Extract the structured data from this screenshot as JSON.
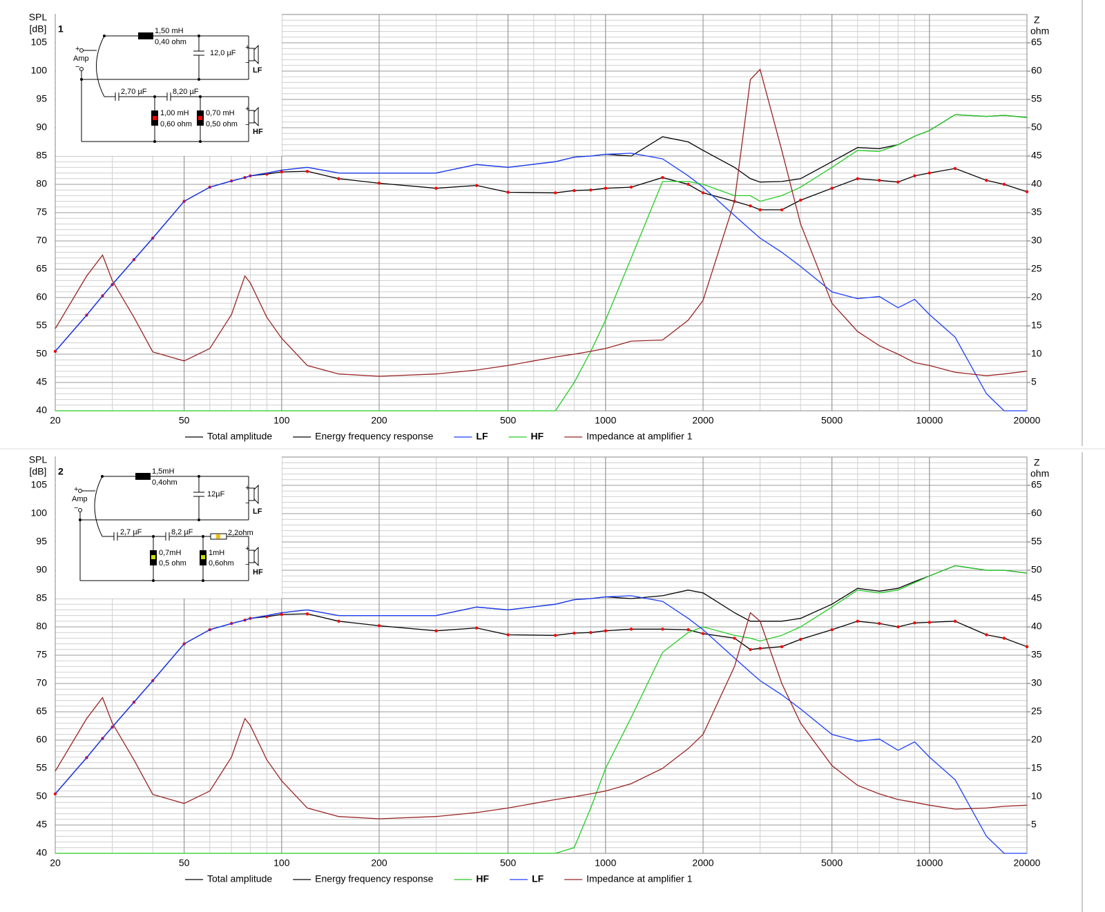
{
  "chart_data": [
    {
      "type": "line",
      "panel_label": "1",
      "y_label": [
        "SPL",
        "[dB]"
      ],
      "y2_label": [
        "Z",
        "ohm"
      ],
      "log_x": true,
      "grid": true,
      "x": [
        20,
        25,
        28,
        30,
        35,
        40,
        50,
        60,
        70,
        77,
        80,
        90,
        100,
        120,
        150,
        200,
        300,
        400,
        500,
        700,
        800,
        900,
        1000,
        1200,
        1500,
        1800,
        2000,
        2500,
        2800,
        3000,
        3500,
        4000,
        5000,
        6000,
        7000,
        8000,
        9000,
        10000,
        12000,
        15000,
        17000,
        20000
      ],
      "xlim": [
        20,
        20000
      ],
      "xticks": [
        20,
        50,
        100,
        200,
        500,
        1000,
        2000,
        5000,
        10000,
        20000
      ],
      "ylim": [
        40,
        110
      ],
      "yticks": [
        40,
        45,
        50,
        55,
        60,
        65,
        70,
        75,
        80,
        85,
        90,
        95,
        100,
        105
      ],
      "y2lim": [
        0,
        70
      ],
      "y2ticks": [
        5,
        10,
        15,
        20,
        25,
        30,
        35,
        40,
        45,
        50,
        55,
        60,
        65
      ],
      "series": [
        {
          "name": "Total amplitude",
          "color": "#000000",
          "values": [
            50.5,
            56.9,
            60.3,
            62.3,
            66.7,
            70.5,
            77,
            79.5,
            80.6,
            81.2,
            81.5,
            82,
            82.5,
            83,
            82,
            82,
            82,
            83.5,
            83,
            84,
            84.8,
            85,
            85.3,
            85,
            88.4,
            87.5,
            86,
            83,
            81,
            80.4,
            80.5,
            81,
            84,
            86.5,
            86.3,
            87,
            88.5,
            89.5,
            92.3,
            92,
            92.2,
            91.8
          ]
        },
        {
          "name": "Energy frequency response",
          "color": "#000000",
          "marker_color": "#ff0000",
          "values": [
            50.5,
            56.9,
            60.3,
            62.3,
            66.7,
            70.5,
            77,
            79.5,
            80.6,
            81.2,
            81.5,
            81.8,
            82.2,
            82.3,
            81,
            80.2,
            79.3,
            79.8,
            78.6,
            78.5,
            78.9,
            79,
            79.3,
            79.5,
            81.2,
            80,
            78.5,
            77,
            76.2,
            75.5,
            75.5,
            77.2,
            79.3,
            81,
            80.7,
            80.4,
            81.5,
            82,
            82.8,
            80.7,
            80,
            78.7
          ]
        },
        {
          "name": "LF",
          "color": "#1a3cff",
          "values": [
            50.5,
            56.9,
            60.3,
            62.3,
            66.7,
            70.5,
            77,
            79.5,
            80.6,
            81.2,
            81.5,
            82,
            82.5,
            83,
            82,
            82,
            82,
            83.5,
            83,
            84,
            84.8,
            85,
            85.3,
            85.5,
            84.5,
            81.5,
            79.5,
            74.5,
            72,
            70.5,
            68,
            65.5,
            61,
            59.8,
            60.2,
            58.2,
            59.7,
            57,
            53,
            43,
            40,
            40
          ]
        },
        {
          "name": "HF",
          "color": "#22cc22",
          "values": [
            40,
            40,
            40,
            40,
            40,
            40,
            40,
            40,
            40,
            40,
            40,
            40,
            40,
            40,
            40,
            40,
            40,
            40,
            40,
            40,
            45,
            50.5,
            56,
            67,
            80.5,
            80.5,
            80,
            78,
            78,
            77,
            78,
            79.5,
            83,
            86,
            85.8,
            87,
            88.5,
            89.5,
            92.3,
            92,
            92.2,
            91.8
          ]
        },
        {
          "name": "Impedance at amplifier 1",
          "color": "#992222",
          "axis": "y2",
          "values": [
            14.5,
            23.8,
            27.5,
            23,
            16.5,
            10.4,
            8.8,
            11,
            17,
            23.8,
            22.6,
            16.5,
            12.8,
            8,
            6.5,
            6.1,
            6.5,
            7.2,
            8,
            9.5,
            10,
            10.5,
            11,
            12.3,
            12.5,
            16,
            19.5,
            37,
            58.5,
            60.3,
            46,
            33,
            19,
            14,
            11.5,
            10,
            8.5,
            8,
            6.8,
            6.2,
            6.5,
            7
          ]
        }
      ],
      "circuit": [
        "1,50 mH",
        "0,40 ohm",
        "12,0 µF",
        "+",
        "−",
        "LF",
        "+",
        "Amp",
        "−",
        "2,70 µF",
        "8,20 µF",
        "1,00 mH",
        "0,60 ohm",
        "0,70 mH",
        "0,50 ohm",
        "+",
        "−",
        "HF"
      ]
    },
    {
      "type": "line",
      "panel_label": "2",
      "y_label": [
        "SPL",
        "[dB]"
      ],
      "y2_label": [
        "Z",
        "ohm"
      ],
      "log_x": true,
      "grid": true,
      "x": [
        20,
        25,
        28,
        30,
        35,
        40,
        50,
        60,
        70,
        77,
        80,
        90,
        100,
        120,
        150,
        200,
        300,
        400,
        500,
        700,
        800,
        900,
        1000,
        1200,
        1500,
        1800,
        2000,
        2500,
        2800,
        3000,
        3500,
        4000,
        5000,
        6000,
        7000,
        8000,
        9000,
        10000,
        12000,
        15000,
        17000,
        20000
      ],
      "xlim": [
        20,
        20000
      ],
      "xticks": [
        20,
        50,
        100,
        200,
        500,
        1000,
        2000,
        5000,
        10000,
        20000
      ],
      "ylim": [
        40,
        110
      ],
      "yticks": [
        40,
        45,
        50,
        55,
        60,
        65,
        70,
        75,
        80,
        85,
        90,
        95,
        100,
        105
      ],
      "y2lim": [
        0,
        70
      ],
      "y2ticks": [
        5,
        10,
        15,
        20,
        25,
        30,
        35,
        40,
        45,
        50,
        55,
        60,
        65
      ],
      "series": [
        {
          "name": "Total amplitude",
          "color": "#000000",
          "values": [
            50.5,
            56.9,
            60.3,
            62.3,
            66.7,
            70.5,
            77,
            79.5,
            80.6,
            81.2,
            81.5,
            82,
            82.5,
            83,
            82,
            82,
            82,
            83.5,
            83,
            84,
            84.8,
            85,
            85.3,
            85,
            85.5,
            86.5,
            86,
            82.5,
            81,
            81,
            81,
            81.5,
            84,
            86.8,
            86.3,
            86.8,
            88,
            89,
            90.8,
            90,
            90,
            89.5
          ]
        },
        {
          "name": "Energy frequency response",
          "color": "#000000",
          "marker_color": "#ff0000",
          "values": [
            50.5,
            56.9,
            60.3,
            62.3,
            66.7,
            70.5,
            77,
            79.5,
            80.6,
            81.2,
            81.5,
            81.8,
            82.2,
            82.3,
            81,
            80.2,
            79.3,
            79.8,
            78.6,
            78.5,
            78.9,
            79,
            79.3,
            79.6,
            79.6,
            79.5,
            78.8,
            78,
            76,
            76.2,
            76.5,
            77.8,
            79.5,
            81,
            80.6,
            80,
            80.7,
            80.8,
            81,
            78.6,
            78,
            76.5
          ]
        },
        {
          "name": "HF",
          "color": "#22cc22",
          "values": [
            40,
            40,
            40,
            40,
            40,
            40,
            40,
            40,
            40,
            40,
            40,
            40,
            40,
            40,
            40,
            40,
            40,
            40,
            40,
            40,
            41,
            48,
            55,
            64,
            75.5,
            79,
            80,
            78.5,
            78,
            77.5,
            78.5,
            80,
            83.5,
            86.5,
            86,
            86.5,
            87.8,
            89,
            90.8,
            90,
            90,
            89.5
          ]
        },
        {
          "name": "LF",
          "color": "#1a3cff",
          "values": [
            50.5,
            56.9,
            60.3,
            62.3,
            66.7,
            70.5,
            77,
            79.5,
            80.6,
            81.2,
            81.5,
            82,
            82.5,
            83,
            82,
            82,
            82,
            83.5,
            83,
            84,
            84.8,
            85,
            85.3,
            85.5,
            84.5,
            81.5,
            79.5,
            74.5,
            72,
            70.5,
            68,
            65.5,
            61,
            59.8,
            60.2,
            58.2,
            59.7,
            57,
            53,
            43,
            40,
            40
          ]
        },
        {
          "name": "Impedance at amplifier 1",
          "color": "#992222",
          "axis": "y2",
          "values": [
            14.5,
            23.8,
            27.5,
            23,
            16.5,
            10.4,
            8.8,
            11,
            17,
            23.8,
            22.6,
            16.5,
            12.8,
            8,
            6.5,
            6.1,
            6.5,
            7.2,
            8,
            9.5,
            10,
            10.5,
            11,
            12.3,
            15,
            18.5,
            21,
            33,
            42.5,
            41,
            30,
            23,
            15.5,
            12,
            10.5,
            9.5,
            9,
            8.5,
            7.8,
            8,
            8.3,
            8.5
          ]
        }
      ],
      "circuit": [
        "1,5mH",
        "0,4ohm",
        "12µF",
        "+",
        "−",
        "LF",
        "+",
        "Amp",
        "−",
        "2,7 µF",
        "8,2 µF",
        "2,2ohm",
        "0,7mH",
        "0,5 ohm",
        "1mH",
        "0,6ohm",
        "+",
        "−",
        "HF"
      ]
    }
  ]
}
